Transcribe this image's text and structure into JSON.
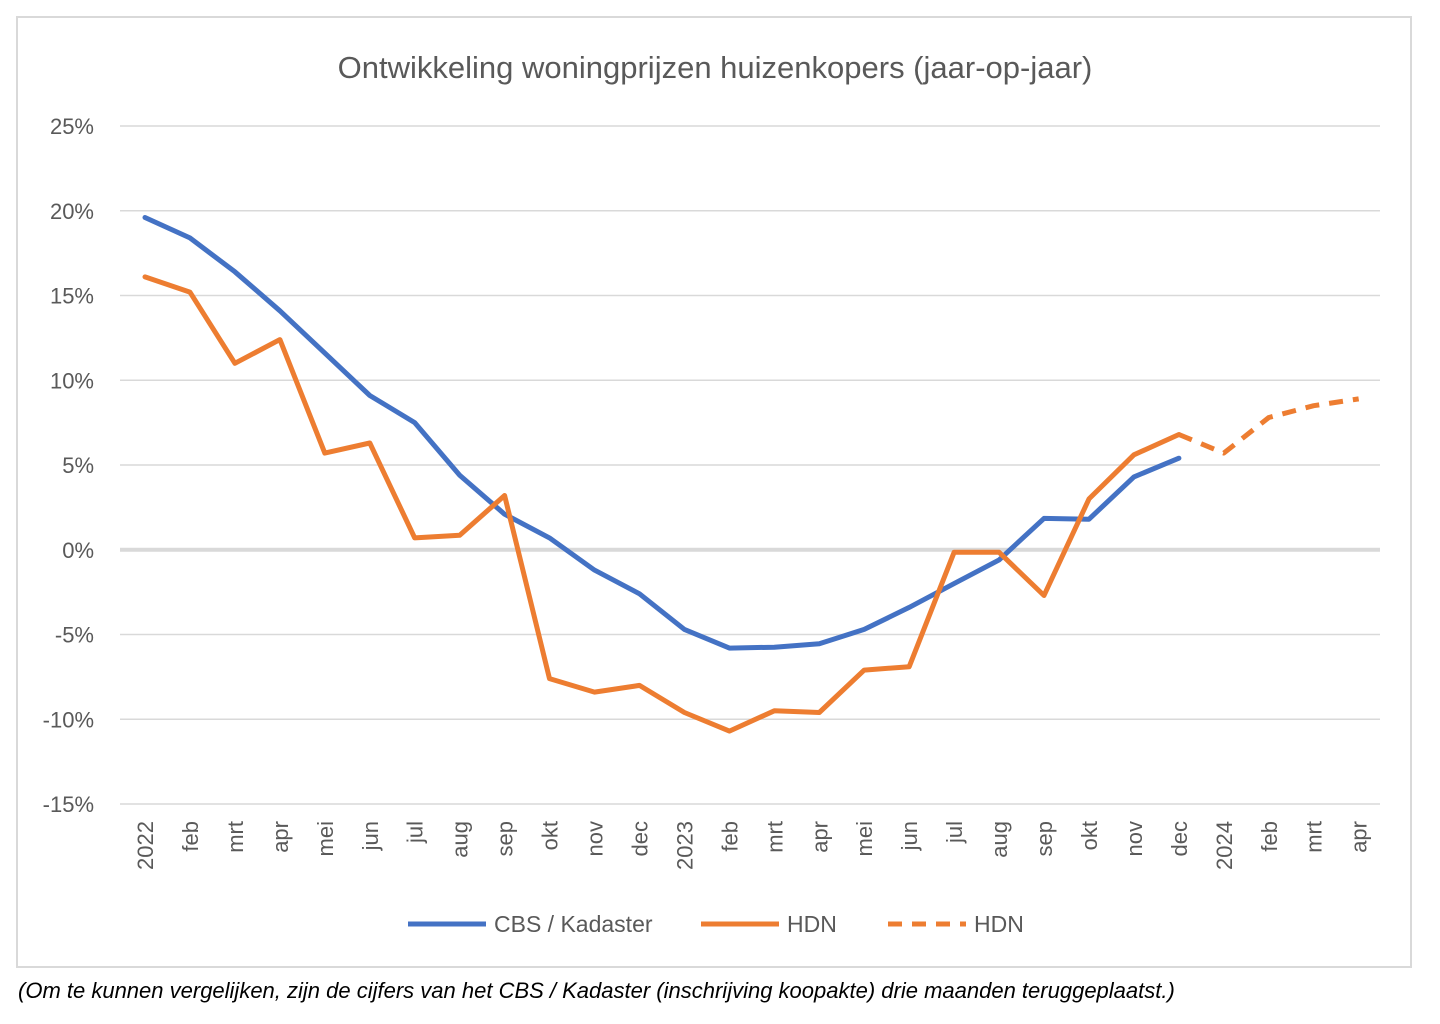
{
  "chart_data": {
    "type": "line",
    "title": "Ontwikkeling woningprijzen huizenkopers (jaar-op-jaar)",
    "xlabel": "",
    "ylabel": "",
    "categories": [
      "2022",
      "feb",
      "mrt",
      "apr",
      "mei",
      "jun",
      "jul",
      "aug",
      "sep",
      "okt",
      "nov",
      "dec",
      "2023",
      "feb",
      "mrt",
      "apr",
      "mei",
      "jun",
      "jul",
      "aug",
      "sep",
      "okt",
      "nov",
      "dec",
      "2024",
      "feb",
      "mrt",
      "apr"
    ],
    "ylim": [
      -15,
      25
    ],
    "yticks": [
      25,
      20,
      15,
      10,
      5,
      0,
      -5,
      -10,
      -15
    ],
    "ytick_labels": [
      "25%",
      "20%",
      "15%",
      "10%",
      "5%",
      "0%",
      "-5%",
      "-10%",
      "-15%"
    ],
    "grid": true,
    "legend_position": "bottom",
    "series": [
      {
        "name": "CBS / Kadaster",
        "color": "#4472c4",
        "style": "solid",
        "values": [
          19.6,
          18.4,
          16.4,
          14.1,
          11.6,
          9.1,
          7.5,
          4.4,
          2.1,
          0.7,
          -1.2,
          -2.6,
          -4.7,
          -5.8,
          -5.75,
          -5.55,
          -4.7,
          -3.4,
          -2.0,
          -0.6,
          1.85,
          1.8,
          4.3,
          5.4,
          null,
          null,
          null,
          null
        ]
      },
      {
        "name": "HDN",
        "color": "#ed7d31",
        "style": "solid",
        "values": [
          16.1,
          15.2,
          11.0,
          12.4,
          5.7,
          6.3,
          0.7,
          0.85,
          3.2,
          -7.6,
          -8.4,
          -8.0,
          -9.6,
          -10.7,
          -9.5,
          -9.6,
          -7.1,
          -6.9,
          -0.15,
          -0.15,
          -2.7,
          3.0,
          5.6,
          6.8,
          null,
          null,
          null,
          null
        ]
      },
      {
        "name": "HDN",
        "color": "#ed7d31",
        "style": "dashed",
        "values": [
          null,
          null,
          null,
          null,
          null,
          null,
          null,
          null,
          null,
          null,
          null,
          null,
          null,
          null,
          null,
          null,
          null,
          null,
          null,
          null,
          null,
          null,
          null,
          6.8,
          5.7,
          7.8,
          8.5,
          8.9
        ]
      }
    ]
  },
  "caption": "(Om te kunnen vergelijken, zijn de cijfers van het CBS / Kadaster (inschrijving koopakte) drie maanden teruggeplaatst.)"
}
